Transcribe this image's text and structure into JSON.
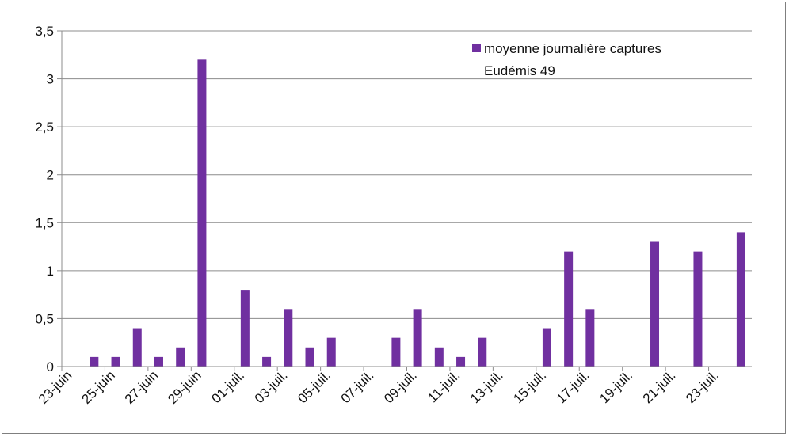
{
  "chart_data": {
    "type": "bar",
    "title": "",
    "xlabel": "",
    "ylabel": "",
    "ylim": [
      0,
      3.5
    ],
    "y_ticks": [
      "0",
      "0,5",
      "1",
      "1,5",
      "2",
      "2,5",
      "3",
      "3,5"
    ],
    "y_tick_values": [
      0,
      0.5,
      1,
      1.5,
      2,
      2.5,
      3,
      3.5
    ],
    "x_range": [
      "2013-06-23",
      "2013-07-24"
    ],
    "x_ticks": [
      "23-juin",
      "25-juin",
      "27-juin",
      "29-juin",
      "01-juil.",
      "03-juil.",
      "05-juil.",
      "07-juil.",
      "09-juil.",
      "11-juil.",
      "13-juil.",
      "15-juil.",
      "17-juil.",
      "19-juil.",
      "21-juil.",
      "23-juil."
    ],
    "x_tick_dates": [
      "2013-06-23",
      "2013-06-25",
      "2013-06-27",
      "2013-06-29",
      "2013-07-01",
      "2013-07-03",
      "2013-07-05",
      "2013-07-07",
      "2013-07-09",
      "2013-07-11",
      "2013-07-13",
      "2013-07-15",
      "2013-07-17",
      "2013-07-19",
      "2013-07-21",
      "2013-07-23"
    ],
    "grid": "horizontal",
    "legend_position": "top-right",
    "bar_color": "#7030a0",
    "series": [
      {
        "name": "moyenne journalière captures Eudémis 49",
        "points": [
          {
            "date": "2013-06-24",
            "value": 0.1
          },
          {
            "date": "2013-06-25",
            "value": 0.1
          },
          {
            "date": "2013-06-26",
            "value": 0.4
          },
          {
            "date": "2013-06-27",
            "value": 0.1
          },
          {
            "date": "2013-06-28",
            "value": 0.2
          },
          {
            "date": "2013-06-29",
            "value": 3.2
          },
          {
            "date": "2013-07-01",
            "value": 0.8
          },
          {
            "date": "2013-07-02",
            "value": 0.1
          },
          {
            "date": "2013-07-03",
            "value": 0.6
          },
          {
            "date": "2013-07-04",
            "value": 0.2
          },
          {
            "date": "2013-07-05",
            "value": 0.3
          },
          {
            "date": "2013-07-08",
            "value": 0.3
          },
          {
            "date": "2013-07-09",
            "value": 0.6
          },
          {
            "date": "2013-07-10",
            "value": 0.2
          },
          {
            "date": "2013-07-11",
            "value": 0.1
          },
          {
            "date": "2013-07-12",
            "value": 0.3
          },
          {
            "date": "2013-07-15",
            "value": 0.4
          },
          {
            "date": "2013-07-16",
            "value": 1.2
          },
          {
            "date": "2013-07-17",
            "value": 0.6
          },
          {
            "date": "2013-07-20",
            "value": 1.3
          },
          {
            "date": "2013-07-22",
            "value": 1.2
          },
          {
            "date": "2013-07-24",
            "value": 1.4
          }
        ]
      }
    ],
    "legend": {
      "line1": "moyenne journalière captures",
      "line2": "Eudémis 49"
    }
  }
}
